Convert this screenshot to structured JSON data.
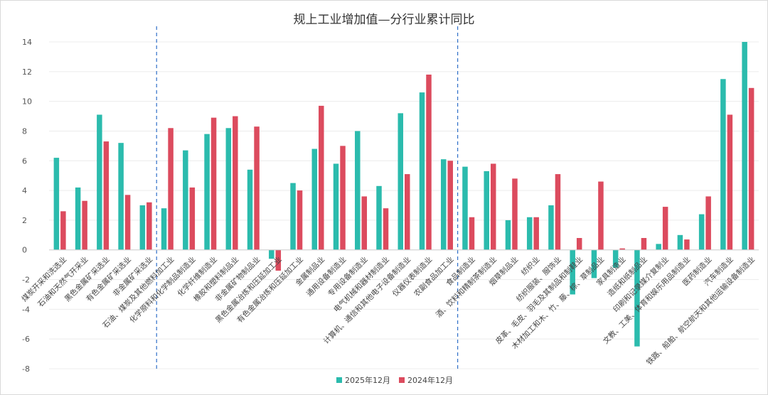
{
  "chart_data": {
    "type": "bar",
    "title": "规上工业增加值—分行业累计同比",
    "xlabel": "",
    "ylabel": "",
    "ylim": [
      -8,
      14
    ],
    "yticks": [
      14,
      12,
      10,
      8,
      6,
      4,
      2,
      0,
      -2,
      -4,
      -6,
      -8
    ],
    "grid": true,
    "legend_position": "bottom",
    "divider_lines_after_categories": [
      4,
      18
    ],
    "categories": [
      "煤炭开采和洗选业",
      "石油和天然气开采业",
      "黑色金属矿采选业",
      "有色金属矿采选业",
      "非金属矿采选业",
      "石油、煤炭及其他燃料加工业",
      "化学原料和化学制品制造业",
      "化学纤维制造业",
      "橡胶和塑料制品业",
      "非金属矿物制品业",
      "黑色金属冶炼和压延加工业",
      "有色金属冶炼和压延加工业",
      "金属制品业",
      "通用设备制造业",
      "专用设备制造业",
      "电气机械和器材制造业",
      "计算机、通信和其他电子设备制造业",
      "仪器仪表制造业",
      "农副食品加工业",
      "食品制造业",
      "酒、饮料和精制茶制造业",
      "烟草制品业",
      "纺织业",
      "纺织服装、服饰业",
      "皮革、毛皮、羽毛及其制品和制鞋业",
      "木材加工和木、竹、藤、棕、草制品业",
      "家具制造业",
      "造纸和纸制品业",
      "印刷和记录媒介复制业",
      "文教、工美、体育和娱乐用品制造业",
      "医药制造业",
      "汽车制造业",
      "铁路、船舶、航空航天和其他运输设备制造业"
    ],
    "series": [
      {
        "name": "2025年12月",
        "color": "#2bbbad",
        "values": [
          6.2,
          4.2,
          9.1,
          7.2,
          3.0,
          2.8,
          6.7,
          7.8,
          8.2,
          5.4,
          -0.6,
          4.5,
          6.8,
          5.8,
          8.0,
          4.3,
          9.2,
          10.6,
          6.1,
          5.6,
          5.3,
          2.0,
          2.2,
          3.0,
          -3.0,
          -1.9,
          -1.2,
          -6.5,
          0.4,
          1.0,
          2.4,
          11.5,
          14.0
        ]
      },
      {
        "name": "2024年12月",
        "color": "#dc4b5e",
        "values": [
          2.6,
          3.3,
          7.3,
          3.7,
          3.2,
          8.2,
          4.2,
          8.9,
          9.0,
          8.3,
          -1.4,
          4.0,
          9.7,
          7.0,
          3.6,
          2.8,
          5.1,
          11.8,
          6.0,
          2.2,
          5.8,
          4.8,
          2.2,
          5.1,
          0.8,
          4.6,
          0.1,
          0.8,
          2.9,
          0.7,
          3.6,
          9.1,
          10.9
        ]
      }
    ]
  }
}
